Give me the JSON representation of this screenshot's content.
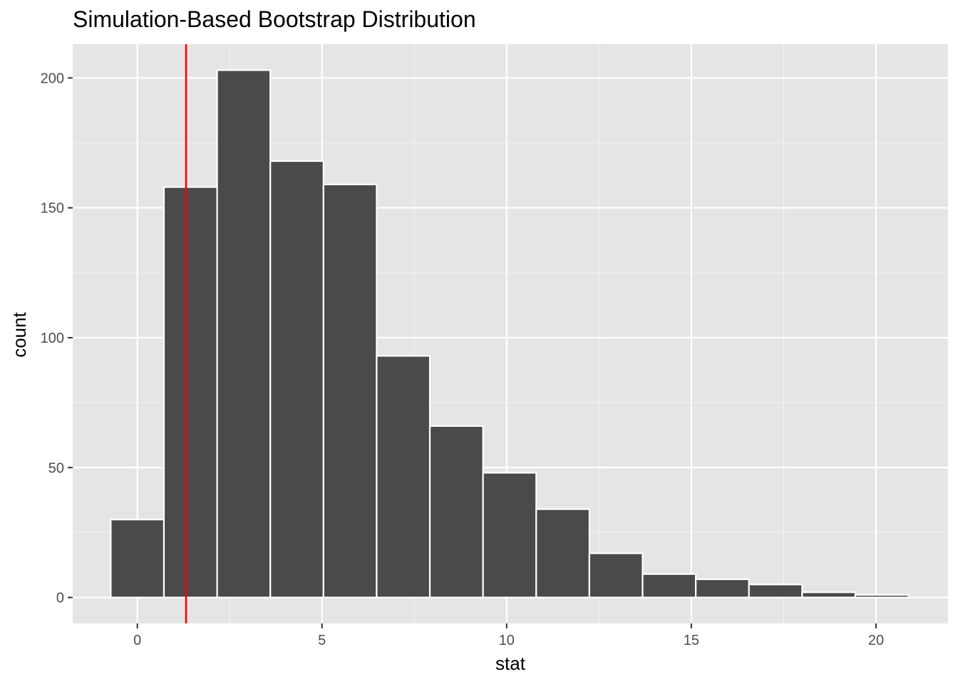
{
  "chart_data": {
    "type": "bar",
    "title": "Simulation-Based Bootstrap Distribution",
    "xlabel": "stat",
    "ylabel": "count",
    "xlim": [
      -1.75,
      21.95
    ],
    "ylim": [
      -10,
      213
    ],
    "x_ticks": [
      0,
      5,
      10,
      15,
      20
    ],
    "y_ticks": [
      0,
      50,
      100,
      150,
      200
    ],
    "bin_width": 1.44,
    "bins": [
      {
        "x_start": -0.72,
        "x_end": 0.72,
        "count": 30
      },
      {
        "x_start": 0.72,
        "x_end": 2.16,
        "count": 158
      },
      {
        "x_start": 2.16,
        "x_end": 3.6,
        "count": 203
      },
      {
        "x_start": 3.6,
        "x_end": 5.04,
        "count": 168
      },
      {
        "x_start": 5.04,
        "x_end": 6.48,
        "count": 159
      },
      {
        "x_start": 6.48,
        "x_end": 7.92,
        "count": 93
      },
      {
        "x_start": 7.92,
        "x_end": 9.36,
        "count": 66
      },
      {
        "x_start": 9.36,
        "x_end": 10.8,
        "count": 48
      },
      {
        "x_start": 10.8,
        "x_end": 12.24,
        "count": 34
      },
      {
        "x_start": 12.24,
        "x_end": 13.68,
        "count": 17
      },
      {
        "x_start": 13.68,
        "x_end": 15.12,
        "count": 9
      },
      {
        "x_start": 15.12,
        "x_end": 16.56,
        "count": 7
      },
      {
        "x_start": 16.56,
        "x_end": 18.0,
        "count": 5
      },
      {
        "x_start": 18.0,
        "x_end": 19.44,
        "count": 2
      },
      {
        "x_start": 19.44,
        "x_end": 20.88,
        "count": 1
      }
    ],
    "reference_line": {
      "x": 1.32,
      "color": "#ff0000"
    },
    "bar_fill": "#4a4a4a",
    "bar_outline": "#ffffff",
    "panel_background": "#e5e5e5",
    "grid": true,
    "legend": "none"
  }
}
